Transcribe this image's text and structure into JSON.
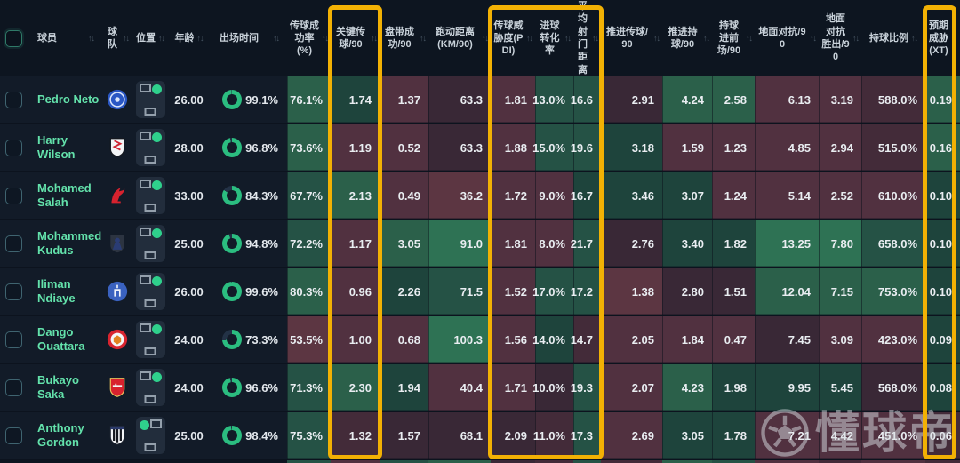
{
  "table": {
    "columns": [
      {
        "id": "select",
        "label": "",
        "sort": "none"
      },
      {
        "id": "player",
        "label": "球员",
        "sort": "both"
      },
      {
        "id": "team",
        "label": "球队",
        "sort": "both"
      },
      {
        "id": "position",
        "label": "位置",
        "sort": "both"
      },
      {
        "id": "age",
        "label": "年龄",
        "sort": "both"
      },
      {
        "id": "time",
        "label": "出场时间",
        "sort": "both"
      },
      {
        "id": "pass-accuracy",
        "label": "传球成功率(%)",
        "sort": "both"
      },
      {
        "id": "key-passes",
        "label": "关键传球/90",
        "sort": "both"
      },
      {
        "id": "dribbles",
        "label": "盘带成功/90",
        "sort": "both"
      },
      {
        "id": "distance",
        "label": "跑动距离(KM/90)",
        "sort": "both"
      },
      {
        "id": "pdi",
        "label": "传球威胁度(PDI)",
        "sort": "both"
      },
      {
        "id": "conversion",
        "label": "进球转化率",
        "sort": "both"
      },
      {
        "id": "shot-distance",
        "label": "平均射门距离",
        "sort": "both"
      },
      {
        "id": "prog-passes",
        "label": "推进传球/90",
        "sort": "both"
      },
      {
        "id": "prog-carries",
        "label": "推进持球/90",
        "sort": "both"
      },
      {
        "id": "carries-final-third",
        "label": "持球进前场/90",
        "sort": "both"
      },
      {
        "id": "ground-duels",
        "label": "地面对抗/90",
        "sort": "both"
      },
      {
        "id": "ground-duels-won",
        "label": "地面对抗胜出/90",
        "sort": "both"
      },
      {
        "id": "possession-share",
        "label": "持球比例",
        "sort": "both"
      },
      {
        "id": "xt",
        "label": "预期威胁(XT)",
        "sort": "desc"
      }
    ],
    "players": [
      {
        "name": "Pedro Neto",
        "team": "Chelsea",
        "position_dot": "right",
        "age": "26.00",
        "time": "99.1%",
        "time_value": 99.1,
        "values": [
          "76.1%",
          "1.74",
          "1.37",
          "63.3",
          "1.81",
          "13.0%",
          "16.6",
          "2.91",
          "4.24",
          "2.58",
          "6.13",
          "3.19",
          "588.0%",
          "0.19"
        ],
        "tones": [
          "g3",
          "g1",
          "r2",
          "n",
          "r2",
          "g2",
          "g2",
          "n",
          "g3",
          "g3",
          "r2",
          "r2",
          "r1",
          "g3"
        ]
      },
      {
        "name": "Harry Wilson",
        "team": "Fulham",
        "position_dot": "right",
        "age": "28.00",
        "time": "96.8%",
        "time_value": 96.8,
        "values": [
          "73.6%",
          "1.19",
          "0.52",
          "63.3",
          "1.88",
          "15.0%",
          "19.6",
          "3.18",
          "1.59",
          "1.23",
          "4.85",
          "2.94",
          "515.0%",
          "0.16"
        ],
        "tones": [
          "g3",
          "r2",
          "r2",
          "n",
          "r2",
          "g2",
          "g2",
          "g1",
          "r2",
          "r2",
          "r2",
          "r2",
          "r1",
          "g3"
        ]
      },
      {
        "name": "Mohamed Salah",
        "team": "Liverpool",
        "position_dot": "right",
        "age": "33.00",
        "time": "84.3%",
        "time_value": 84.3,
        "values": [
          "67.7%",
          "2.13",
          "0.49",
          "36.2",
          "1.72",
          "9.0%",
          "16.7",
          "3.46",
          "3.07",
          "1.24",
          "5.14",
          "2.52",
          "610.0%",
          "0.10"
        ],
        "tones": [
          "g2",
          "g3",
          "r2",
          "r3",
          "r2",
          "r2",
          "g1",
          "g1",
          "g1",
          "r2",
          "r2",
          "r2",
          "r2",
          "g1"
        ]
      },
      {
        "name": "Mohammed Kudus",
        "team": "Tottenham",
        "position_dot": "right",
        "age": "25.00",
        "time": "94.8%",
        "time_value": 94.8,
        "values": [
          "72.2%",
          "1.17",
          "3.05",
          "91.0",
          "1.81",
          "8.0%",
          "21.7",
          "2.76",
          "3.40",
          "1.82",
          "13.25",
          "7.80",
          "658.0%",
          "0.10"
        ],
        "tones": [
          "g2",
          "r2",
          "g3",
          "g4",
          "r2",
          "r2",
          "g2",
          "n",
          "g1",
          "g1",
          "g4",
          "g4",
          "g2",
          "g1"
        ]
      },
      {
        "name": "Iliman Ndiaye",
        "team": "Everton",
        "position_dot": "right",
        "age": "26.00",
        "time": "99.6%",
        "time_value": 99.6,
        "values": [
          "80.3%",
          "0.96",
          "2.26",
          "71.5",
          "1.52",
          "17.0%",
          "17.2",
          "1.38",
          "2.80",
          "1.51",
          "12.04",
          "7.15",
          "753.0%",
          "0.10"
        ],
        "tones": [
          "g3",
          "r2",
          "g1",
          "g2",
          "r2",
          "g2",
          "g2",
          "r3",
          "n",
          "n",
          "g3",
          "g3",
          "g3",
          "g1"
        ]
      },
      {
        "name": "Dango Ouattara",
        "team": "Brentford",
        "position_dot": "right",
        "age": "24.00",
        "time": "73.3%",
        "time_value": 73.3,
        "values": [
          "53.5%",
          "1.00",
          "0.68",
          "100.3",
          "1.56",
          "14.0%",
          "14.7",
          "2.05",
          "1.84",
          "0.47",
          "7.45",
          "3.09",
          "423.0%",
          "0.09"
        ],
        "tones": [
          "r3",
          "r2",
          "r2",
          "g4",
          "r2",
          "g1",
          "r1",
          "r2",
          "r2",
          "r2",
          "n",
          "r2",
          "r2",
          "g1"
        ]
      },
      {
        "name": "Bukayo Saka",
        "team": "Arsenal",
        "position_dot": "right",
        "age": "24.00",
        "time": "96.6%",
        "time_value": 96.6,
        "values": [
          "71.3%",
          "2.30",
          "1.94",
          "40.4",
          "1.71",
          "10.0%",
          "19.3",
          "2.07",
          "4.23",
          "1.98",
          "9.95",
          "5.45",
          "568.0%",
          "0.08"
        ],
        "tones": [
          "g2",
          "g3",
          "g1",
          "r2",
          "r2",
          "n",
          "g2",
          "r2",
          "g3",
          "g1",
          "g1",
          "g1",
          "n",
          "g1"
        ]
      },
      {
        "name": "Anthony Gordon",
        "team": "Newcastle",
        "position_dot": "left",
        "age": "25.00",
        "time": "98.4%",
        "time_value": 98.4,
        "values": [
          "75.3%",
          "1.32",
          "1.57",
          "68.1",
          "2.09",
          "11.0%",
          "17.3",
          "2.69",
          "3.05",
          "1.78",
          "7.21",
          "4.42",
          "451.0%",
          "0.06"
        ],
        "tones": [
          "g2",
          "r1",
          "n",
          "n",
          "n",
          "r1",
          "g2",
          "r2",
          "g1",
          "g1",
          "r2",
          "r2",
          "r2",
          "r1"
        ]
      }
    ],
    "next_row_peek": [
      "g2",
      "r2",
      "g2",
      "g3",
      "n",
      "r1",
      "g2",
      "r1",
      "g3",
      "g2",
      "r2",
      "r1",
      "r2",
      "r1"
    ]
  },
  "highlights": {
    "boxes": [
      {
        "name": "highlight-key-passes",
        "columns": [
          "key-passes"
        ]
      },
      {
        "name": "highlight-threat-group",
        "columns": [
          "pdi",
          "conversion",
          "shot-distance"
        ]
      },
      {
        "name": "highlight-xt",
        "columns": [
          "xt"
        ]
      }
    ],
    "color": "#f2b104"
  },
  "watermark": {
    "text": "懂球帝",
    "icon": "football-icon"
  },
  "colors": {
    "background": "#0d1520",
    "row_background": "#121b28",
    "player_name": "#63e2ab",
    "ring_green": "#2bbd80",
    "ring_track": "#233246",
    "position_dot": "#2fd08c",
    "highlight_yellow": "#f2b104",
    "tones": {
      "g4": "#2e7254",
      "g3": "#2b604a",
      "g2": "#255245",
      "g1": "#1e443c",
      "n": "#392836",
      "r1": "#432b39",
      "r2": "#513140",
      "r3": "#5c3642"
    }
  }
}
